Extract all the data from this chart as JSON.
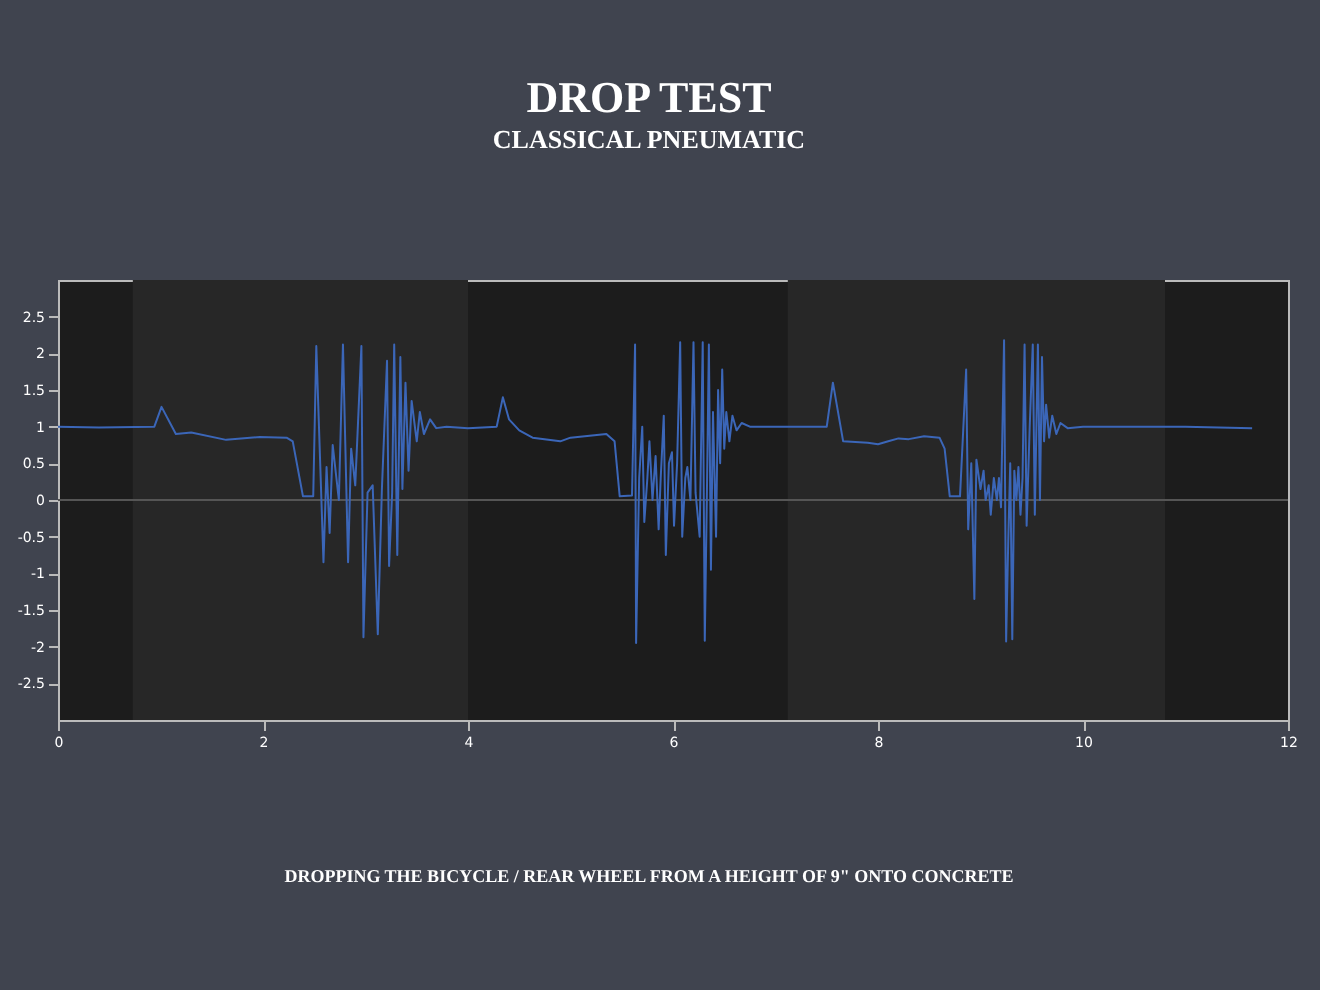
{
  "chart_data": {
    "type": "line",
    "title": "DROP TEST",
    "subtitle": "CLASSICAL PNEUMATIC",
    "annotations": [
      "DROPPING THE BICYCLE / REAR WHEEL FROM A HEIGHT OF 9\" ONTO CONCRETE"
    ],
    "x": [
      0,
      0.4,
      0.94,
      1.01,
      1.15,
      1.3,
      1.64,
      1.97,
      2.23,
      2.29,
      2.39,
      2.49,
      2.52,
      2.59,
      2.62,
      2.65,
      2.68,
      2.74,
      2.78,
      2.83,
      2.86,
      2.9,
      2.96,
      2.98,
      3.02,
      3.07,
      3.12,
      3.16,
      3.21,
      3.23,
      3.26,
      3.28,
      3.31,
      3.34,
      3.36,
      3.39,
      3.42,
      3.45,
      3.5,
      3.53,
      3.57,
      3.63,
      3.69,
      3.79,
      4.0,
      4.28,
      4.34,
      4.4,
      4.5,
      4.63,
      4.9,
      5.0,
      5.35,
      5.43,
      5.48,
      5.6,
      5.63,
      5.64,
      5.67,
      5.7,
      5.72,
      5.75,
      5.77,
      5.8,
      5.83,
      5.86,
      5.88,
      5.91,
      5.93,
      5.96,
      5.99,
      6.01,
      6.04,
      6.07,
      6.09,
      6.12,
      6.14,
      6.17,
      6.2,
      6.22,
      6.26,
      6.29,
      6.31,
      6.33,
      6.35,
      6.37,
      6.39,
      6.42,
      6.44,
      6.46,
      6.48,
      6.5,
      6.52,
      6.55,
      6.58,
      6.62,
      6.67,
      6.75,
      7.5,
      7.56,
      7.66,
      7.9,
      8.0,
      8.1,
      8.2,
      8.3,
      8.45,
      8.6,
      8.65,
      8.7,
      8.8,
      8.86,
      8.88,
      8.91,
      8.94,
      8.96,
      9.0,
      9.03,
      9.05,
      9.08,
      9.1,
      9.13,
      9.16,
      9.18,
      9.2,
      9.23,
      9.25,
      9.27,
      9.29,
      9.31,
      9.33,
      9.35,
      9.37,
      9.39,
      9.41,
      9.43,
      9.45,
      9.48,
      9.51,
      9.53,
      9.56,
      9.58,
      9.6,
      9.62,
      9.64,
      9.67,
      9.7,
      9.74,
      9.78,
      9.85,
      10.0,
      11.0,
      11.65
    ],
    "series": [
      {
        "color": "#3b66b8",
        "values": [
          1.0,
          0.99,
          1.0,
          1.27,
          0.9,
          0.92,
          0.82,
          0.86,
          0.85,
          0.8,
          0.05,
          0.05,
          2.1,
          -0.85,
          0.45,
          -0.45,
          0.75,
          0.0,
          2.12,
          -0.85,
          0.7,
          0.2,
          2.1,
          -1.87,
          0.1,
          0.2,
          -1.83,
          0.15,
          1.9,
          -0.9,
          0.1,
          2.12,
          -0.75,
          1.95,
          0.15,
          1.6,
          0.4,
          1.35,
          0.8,
          1.2,
          0.9,
          1.1,
          0.98,
          1.0,
          0.98,
          1.0,
          1.4,
          1.1,
          0.95,
          0.85,
          0.8,
          0.85,
          0.9,
          0.8,
          0.05,
          0.06,
          2.12,
          -1.95,
          0.3,
          1.0,
          -0.3,
          0.3,
          0.8,
          0.0,
          0.6,
          -0.4,
          0.3,
          1.15,
          -0.75,
          0.5,
          0.65,
          -0.35,
          0.5,
          2.15,
          -0.5,
          0.3,
          0.45,
          0.0,
          2.15,
          0.1,
          -0.5,
          2.15,
          -1.92,
          0.0,
          2.12,
          -0.95,
          1.2,
          -0.5,
          1.5,
          0.5,
          1.78,
          0.7,
          1.2,
          0.8,
          1.15,
          0.95,
          1.05,
          1.0,
          1.0,
          1.6,
          0.8,
          0.78,
          0.76,
          0.8,
          0.84,
          0.83,
          0.87,
          0.85,
          0.7,
          0.05,
          0.05,
          1.78,
          -0.4,
          0.5,
          -1.35,
          0.55,
          0.15,
          0.4,
          0.0,
          0.2,
          -0.2,
          0.3,
          0.0,
          0.3,
          -0.1,
          2.18,
          -1.93,
          -0.6,
          0.5,
          -1.9,
          0.4,
          0.0,
          0.45,
          -0.2,
          0.3,
          2.12,
          -0.35,
          1.0,
          2.12,
          -0.2,
          2.12,
          0.0,
          1.95,
          0.8,
          1.3,
          0.85,
          1.15,
          0.9,
          1.05,
          0.98,
          1.0,
          1.0,
          0.98
        ]
      }
    ],
    "xlim": [
      0,
      12
    ],
    "xticks": [
      0,
      2,
      4,
      6,
      8,
      10,
      12
    ],
    "ylim": [
      -3,
      3
    ],
    "yticks": [
      -2.5,
      -2,
      -1.5,
      -1,
      -0.5,
      0,
      0.5,
      1,
      1.5,
      2,
      2.5
    ],
    "bands": [
      {
        "axis": "x",
        "from": 0.73,
        "to": 4.0,
        "color": "#272727"
      },
      {
        "axis": "x",
        "from": 7.12,
        "to": 10.8,
        "color": "#272727"
      }
    ],
    "ref_lines": [
      {
        "axis": "y",
        "value": 0,
        "color": "#555555"
      }
    ],
    "grid": false,
    "line_style": "solid",
    "marker": "none"
  }
}
